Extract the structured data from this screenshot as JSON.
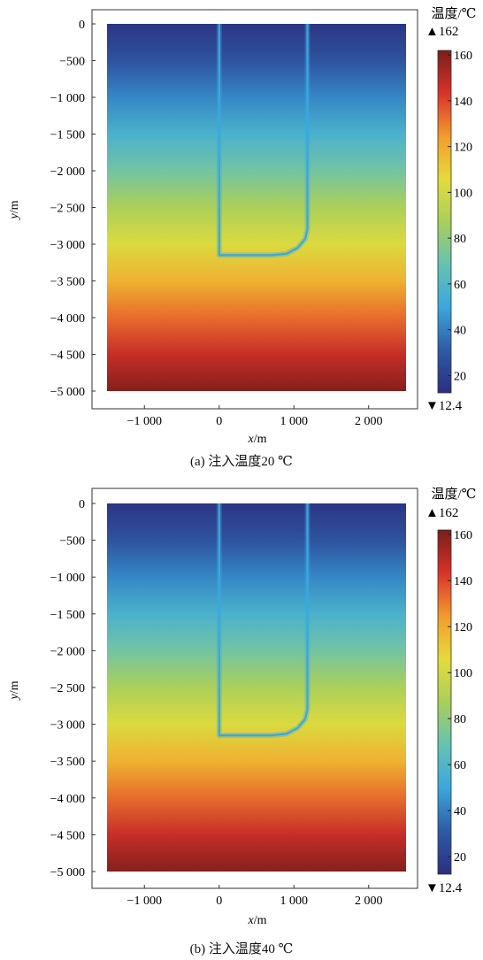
{
  "chart_data": [
    {
      "type": "heatmap",
      "caption": "(a) 注入温度20 ℃",
      "xlabel": "x/m",
      "ylabel": "y/m",
      "xlim": [
        -1500,
        2500
      ],
      "ylim": [
        -5000,
        0
      ],
      "xticks": [
        -1000,
        0,
        1000,
        2000
      ],
      "xtick_labels": [
        "−1 000",
        "0",
        "1 000",
        "2 000"
      ],
      "yticks": [
        0,
        -500,
        -1000,
        -1500,
        -2000,
        -2500,
        -3000,
        -3500,
        -4000,
        -4500,
        -5000
      ],
      "ytick_labels": [
        "0",
        "−500",
        "−1 000",
        "−1 500",
        "−2 000",
        "−2 500",
        "−3 000",
        "−3 500",
        "−4 000",
        "−4 500",
        "−5 000"
      ],
      "colorbar": {
        "title": "温度/℃",
        "max_label": "▲162",
        "min_label": "▼12.4",
        "min": 12.4,
        "max": 162,
        "ticks": [
          20,
          40,
          60,
          80,
          100,
          120,
          140,
          160
        ],
        "tick_labels": [
          "20",
          "40",
          "60",
          "80",
          "100",
          "120",
          "140",
          "160"
        ],
        "colormap": [
          "#2b2f7e",
          "#2f5aa6",
          "#3aa7dc",
          "#66c2b2",
          "#a9cf5a",
          "#e4dc3a",
          "#f39b2d",
          "#d9322b",
          "#7a1e1a"
        ]
      },
      "temperature_profile": {
        "depth": [
          0,
          -500,
          -1000,
          -1500,
          -2000,
          -2500,
          -3000,
          -3500,
          -4000,
          -4500,
          -5000
        ],
        "temperature": [
          15,
          28,
          42,
          57,
          72,
          88,
          103,
          118,
          133,
          147,
          160
        ]
      },
      "well_path": {
        "x": [
          0,
          0,
          700,
          900,
          1050,
          1150,
          1180,
          1180
        ],
        "y": [
          0,
          -3150,
          -3150,
          -3130,
          -3050,
          -2930,
          -2800,
          0
        ],
        "color": "#3aa8e0"
      }
    },
    {
      "type": "heatmap",
      "caption": "(b) 注入温度40 ℃",
      "xlabel": "x/m",
      "ylabel": "y/m",
      "xlim": [
        -1500,
        2500
      ],
      "ylim": [
        -5000,
        0
      ],
      "xticks": [
        -1000,
        0,
        1000,
        2000
      ],
      "xtick_labels": [
        "−1 000",
        "0",
        "1 000",
        "2 000"
      ],
      "yticks": [
        0,
        -500,
        -1000,
        -1500,
        -2000,
        -2500,
        -3000,
        -3500,
        -4000,
        -4500,
        -5000
      ],
      "ytick_labels": [
        "0",
        "−500",
        "−1 000",
        "−1 500",
        "−2 000",
        "−2 500",
        "−3 000",
        "−3 500",
        "−4 000",
        "−4 500",
        "−5 000"
      ],
      "colorbar": {
        "title": "温度/℃",
        "max_label": "▲162",
        "min_label": "▼12.4",
        "min": 12.4,
        "max": 162,
        "ticks": [
          20,
          40,
          60,
          80,
          100,
          120,
          140,
          160
        ],
        "tick_labels": [
          "20",
          "40",
          "60",
          "80",
          "100",
          "120",
          "140",
          "160"
        ],
        "colormap": [
          "#2b2f7e",
          "#2f5aa6",
          "#3aa7dc",
          "#66c2b2",
          "#a9cf5a",
          "#e4dc3a",
          "#f39b2d",
          "#d9322b",
          "#7a1e1a"
        ]
      },
      "temperature_profile": {
        "depth": [
          0,
          -500,
          -1000,
          -1500,
          -2000,
          -2500,
          -3000,
          -3500,
          -4000,
          -4500,
          -5000
        ],
        "temperature": [
          15,
          28,
          42,
          57,
          72,
          88,
          103,
          118,
          133,
          147,
          160
        ]
      },
      "well_path": {
        "x": [
          0,
          0,
          700,
          900,
          1050,
          1150,
          1180,
          1180
        ],
        "y": [
          0,
          -3150,
          -3150,
          -3130,
          -3050,
          -2930,
          -2800,
          0
        ],
        "color": "#3aa8e0"
      }
    }
  ]
}
